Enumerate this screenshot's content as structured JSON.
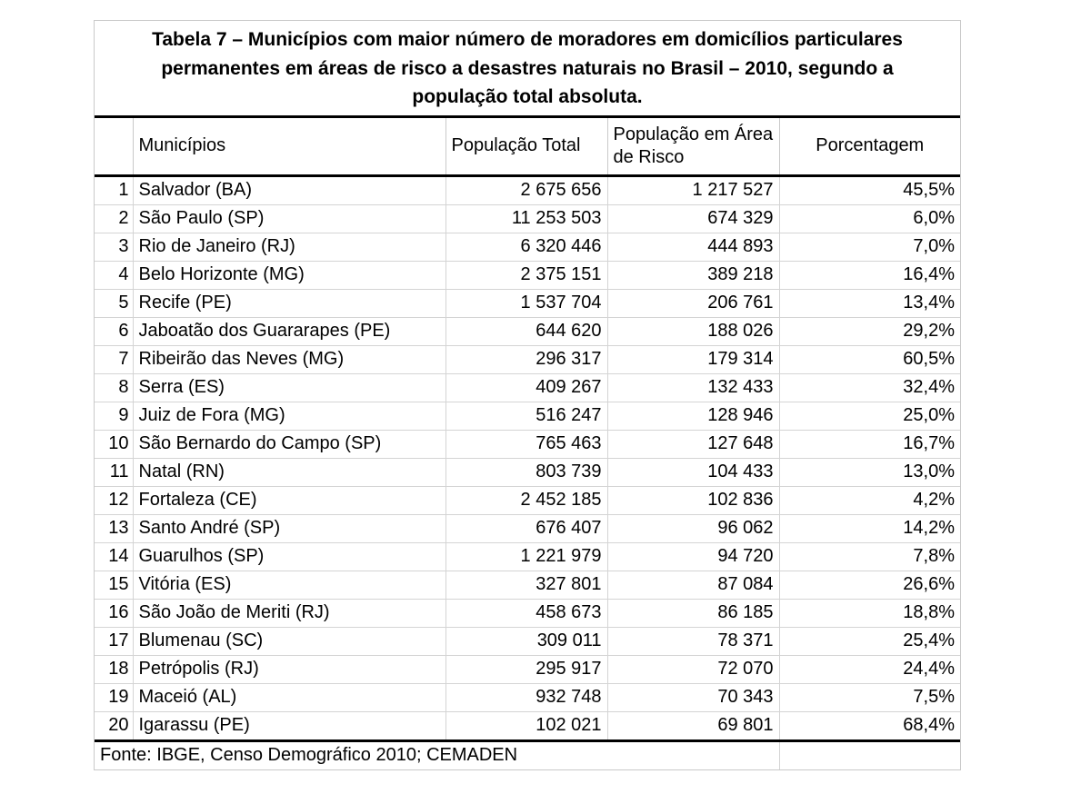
{
  "table": {
    "title": "Tabela 7 – Municípios com maior número de moradores em domicílios particulares permanentes em áreas de risco a desastres naturais no Brasil – 2010, segundo a população total absoluta.",
    "columns": {
      "rank": "",
      "municipio": "Municípios",
      "pop_total": "População Total",
      "pop_risco": "População em Área de Risco",
      "porcentagem": "Porcentagem"
    },
    "rows": [
      {
        "rank": "1",
        "municipio": "Salvador (BA)",
        "pop_total": "2 675 656",
        "pop_risco": "1 217 527",
        "pct": "45,5%"
      },
      {
        "rank": "2",
        "municipio": "São Paulo (SP)",
        "pop_total": "11 253 503",
        "pop_risco": "674 329",
        "pct": "6,0%"
      },
      {
        "rank": "3",
        "municipio": "Rio de Janeiro (RJ)",
        "pop_total": "6 320 446",
        "pop_risco": "444 893",
        "pct": "7,0%"
      },
      {
        "rank": "4",
        "municipio": "Belo Horizonte (MG)",
        "pop_total": "2 375 151",
        "pop_risco": "389 218",
        "pct": "16,4%"
      },
      {
        "rank": "5",
        "municipio": "Recife (PE)",
        "pop_total": "1 537 704",
        "pop_risco": "206 761",
        "pct": "13,4%"
      },
      {
        "rank": "6",
        "municipio": "Jaboatão dos Guararapes (PE)",
        "pop_total": "644 620",
        "pop_risco": "188 026",
        "pct": "29,2%"
      },
      {
        "rank": "7",
        "municipio": "Ribeirão das Neves (MG)",
        "pop_total": "296 317",
        "pop_risco": "179 314",
        "pct": "60,5%"
      },
      {
        "rank": "8",
        "municipio": "Serra (ES)",
        "pop_total": "409 267",
        "pop_risco": "132 433",
        "pct": "32,4%"
      },
      {
        "rank": "9",
        "municipio": "Juiz de Fora (MG)",
        "pop_total": "516 247",
        "pop_risco": "128 946",
        "pct": "25,0%"
      },
      {
        "rank": "10",
        "municipio": "São Bernardo do Campo (SP)",
        "pop_total": "765 463",
        "pop_risco": "127 648",
        "pct": "16,7%"
      },
      {
        "rank": "11",
        "municipio": "Natal (RN)",
        "pop_total": "803 739",
        "pop_risco": "104 433",
        "pct": "13,0%"
      },
      {
        "rank": "12",
        "municipio": "Fortaleza (CE)",
        "pop_total": "2 452 185",
        "pop_risco": "102 836",
        "pct": "4,2%"
      },
      {
        "rank": "13",
        "municipio": "Santo André (SP)",
        "pop_total": "676 407",
        "pop_risco": "96 062",
        "pct": "14,2%"
      },
      {
        "rank": "14",
        "municipio": "Guarulhos (SP)",
        "pop_total": "1 221 979",
        "pop_risco": "94 720",
        "pct": "7,8%"
      },
      {
        "rank": "15",
        "municipio": "Vitória (ES)",
        "pop_total": "327 801",
        "pop_risco": "87 084",
        "pct": "26,6%"
      },
      {
        "rank": "16",
        "municipio": "São João de Meriti (RJ)",
        "pop_total": "458 673",
        "pop_risco": "86 185",
        "pct": "18,8%"
      },
      {
        "rank": "17",
        "municipio": "Blumenau (SC)",
        "pop_total": "309 011",
        "pop_risco": "78 371",
        "pct": "25,4%"
      },
      {
        "rank": "18",
        "municipio": "Petrópolis (RJ)",
        "pop_total": "295 917",
        "pop_risco": "72 070",
        "pct": "24,4%"
      },
      {
        "rank": "19",
        "municipio": "Maceió (AL)",
        "pop_total": "932 748",
        "pop_risco": "70 343",
        "pct": "7,5%"
      },
      {
        "rank": "20",
        "municipio": "Igarassu (PE)",
        "pop_total": "102 021",
        "pop_risco": "69 801",
        "pct": "68,4%"
      }
    ],
    "fonte": "Fonte: IBGE, Censo Demográfico 2010; CEMADEN",
    "colors": {
      "text": "#000000",
      "grid_line": "#d4d4d4",
      "heavy_line": "#000000",
      "background": "#ffffff"
    }
  }
}
